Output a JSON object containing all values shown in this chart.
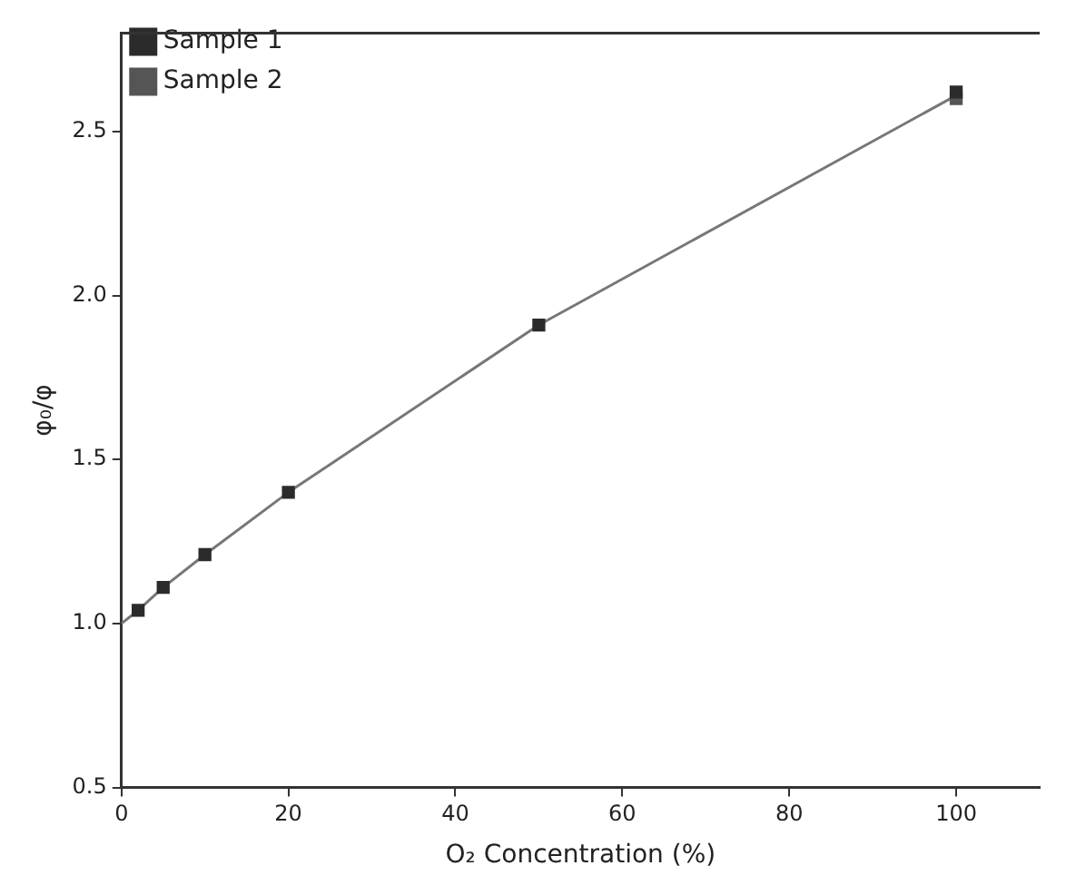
{
  "chart_data": {
    "type": "scatter",
    "xlabel": "O₂ Concentration (%)",
    "ylabel": "φ₀/φ",
    "x": [
      2,
      5,
      10,
      20,
      50,
      100
    ],
    "series": [
      {
        "name": "Sample 1",
        "color": "#2b2b2b",
        "values": [
          1.04,
          1.11,
          1.21,
          1.4,
          1.91,
          2.62
        ]
      },
      {
        "name": "Sample 2",
        "color": "#555555",
        "values": [
          null,
          null,
          null,
          null,
          null,
          2.6
        ]
      },
      {
        "type": "line",
        "color": "#777777",
        "x": [
          0,
          2,
          5,
          10,
          20,
          50,
          100
        ],
        "values": [
          1.0,
          1.04,
          1.11,
          1.21,
          1.4,
          1.91,
          2.61
        ],
        "marker": "none"
      }
    ],
    "xlim": [
      0,
      110
    ],
    "xticks": [
      0,
      20,
      40,
      60,
      80,
      100
    ],
    "ylim": [
      0.5,
      2.8
    ],
    "yticks": [
      {
        "value": 0.5,
        "label": "0.5"
      },
      {
        "value": 1,
        "label": "1.0"
      },
      {
        "value": 1.5,
        "label": "1.5"
      },
      {
        "value": 2,
        "label": "2.0"
      },
      {
        "value": 2.5,
        "label": "2.5"
      }
    ],
    "marker": "square",
    "grid": false,
    "legend": "top left"
  }
}
